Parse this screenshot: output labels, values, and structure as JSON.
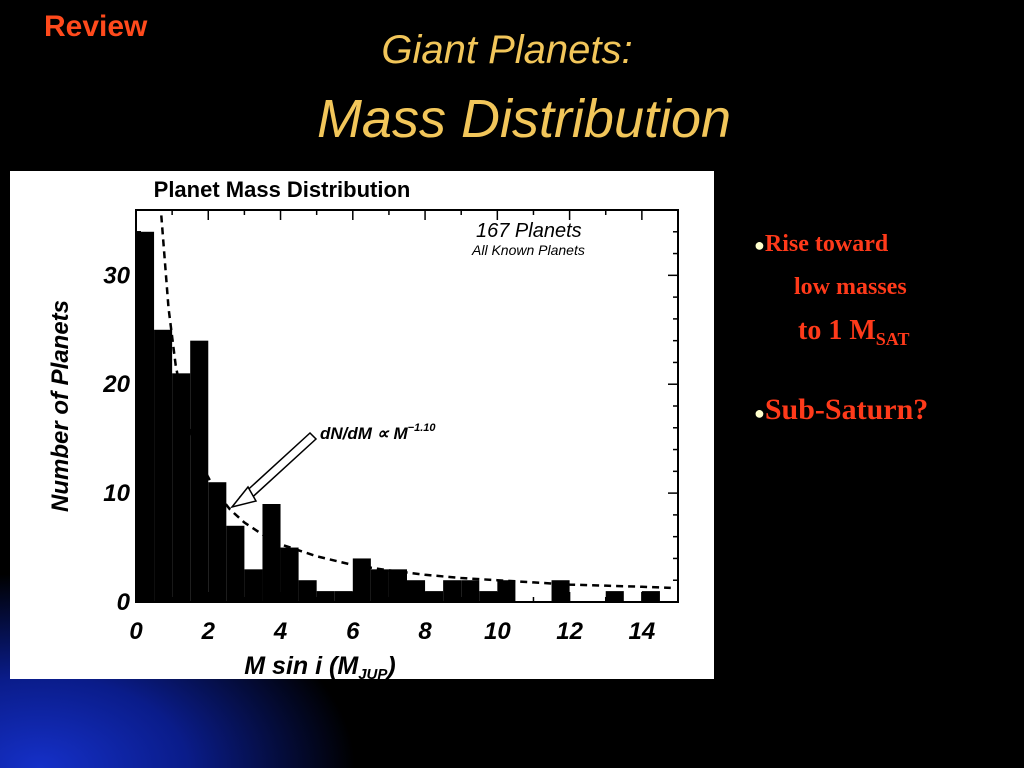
{
  "slide": {
    "tag": "Review",
    "title_line1": "Giant Planets:",
    "title_line2": "Mass  Distribution"
  },
  "bullets": {
    "b1_part1": "Rise toward",
    "b1_part2": "low masses",
    "b1_part3_main": "to 1 M",
    "b1_part3_sub": "SAT",
    "b2": "Sub-Saturn?"
  },
  "chart_data": {
    "type": "bar",
    "title": "Planet Mass Distribution",
    "annotation_count": "167 Planets",
    "annotation_sub": "All Known Planets",
    "fit_label": "dN/dM ∝  M",
    "fit_exponent": "−1.10",
    "xlabel_pre": "M sin ",
    "xlabel_i": "i",
    "xlabel_post": "  (M",
    "xlabel_sub": "JUP",
    "xlabel_close": ")",
    "ylabel": "Number of Planets",
    "xlim": [
      0,
      15
    ],
    "ylim": [
      0,
      36
    ],
    "bin_width": 0.5,
    "xticks": [
      "0",
      "2",
      "4",
      "6",
      "8",
      "10",
      "12",
      "14"
    ],
    "yticks": [
      "0",
      "10",
      "20",
      "30"
    ],
    "bins_start": [
      0,
      0.5,
      1,
      1.5,
      2,
      2.5,
      3,
      3.5,
      4,
      4.5,
      5,
      5.5,
      6,
      6.5,
      7,
      7.5,
      8,
      8.5,
      9,
      9.5,
      10,
      10.5,
      11,
      11.5,
      12,
      12.5,
      13,
      13.5,
      14,
      14.5
    ],
    "values": [
      34,
      25,
      21,
      24,
      11,
      7,
      3,
      9,
      5,
      2,
      1,
      1,
      4,
      3,
      3,
      2,
      1,
      2,
      2,
      1,
      2,
      0,
      0,
      2,
      0,
      0,
      1,
      0,
      1,
      0
    ],
    "fit_curve": {
      "x": [
        0.7,
        0.9,
        1.1,
        1.4,
        1.8,
        2.2,
        2.6,
        3.0,
        3.5,
        4.0,
        5.0,
        6.0,
        7.0,
        8.0,
        9.0,
        10.0,
        11.0,
        12.0,
        13.0,
        14.0,
        14.8
      ],
      "y": [
        35.5,
        27.0,
        21.7,
        16.7,
        12.7,
        10.2,
        8.5,
        7.3,
        6.2,
        5.3,
        4.2,
        3.4,
        2.9,
        2.5,
        2.2,
        2.0,
        1.8,
        1.6,
        1.5,
        1.4,
        1.3
      ]
    },
    "grid": false,
    "legend": "none"
  }
}
